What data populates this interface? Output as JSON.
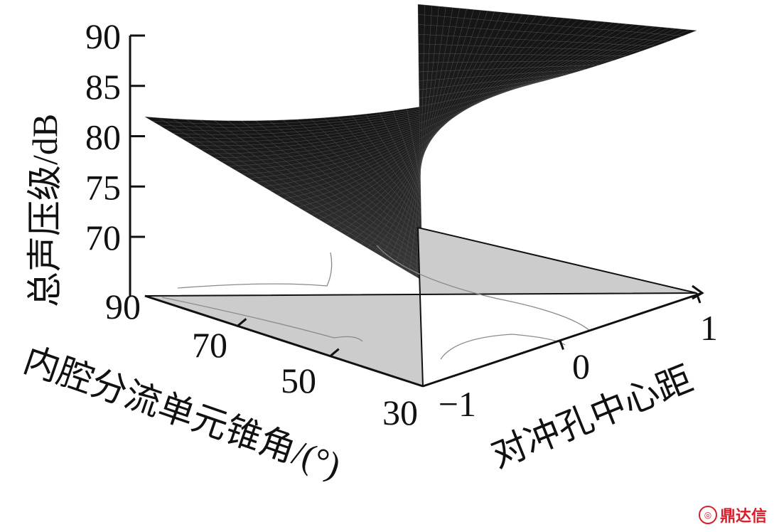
{
  "chart_data": {
    "type": "surface3d",
    "zlabel": "总声压级/dB",
    "xlabel": "内腔分流单元锥角/(°)",
    "ylabel": "对冲孔中心距",
    "z_ticks": [
      "90",
      "85",
      "80",
      "75",
      "70"
    ],
    "zlim": [
      70,
      90
    ],
    "x_ticks": [
      "90",
      "70",
      "50",
      "30"
    ],
    "xlim": [
      30,
      90
    ],
    "y_ticks": [
      "−1",
      "0",
      "1"
    ],
    "ylim": [
      -1,
      1
    ],
    "corner_values": [
      {
        "cone_angle": 90,
        "hole_distance": -1,
        "spl": 81
      },
      {
        "cone_angle": 90,
        "hole_distance": 1,
        "spl": 89.5
      },
      {
        "cone_angle": 30,
        "hole_distance": -1,
        "spl": 73.5
      },
      {
        "cone_angle": 30,
        "hole_distance": 1,
        "spl": 85.5
      }
    ],
    "saddle_center_spl": 79,
    "contour_projection": true,
    "colors": {
      "surface": "#1a1a1a",
      "floor": "#cccccc",
      "contour": "#8a8a8a"
    }
  },
  "watermark": {
    "text": "鼎达信",
    "icon": "logo-icon"
  }
}
